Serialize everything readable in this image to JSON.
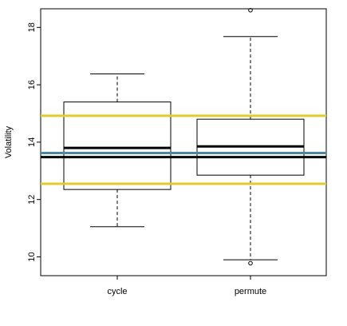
{
  "chart_data": {
    "type": "box",
    "title": "",
    "xlabel": "",
    "ylabel": "Volatility",
    "categories": [
      "cycle",
      "permute"
    ],
    "ylim": [
      9.4,
      19.0
    ],
    "yticks": [
      10,
      12,
      14,
      16,
      18
    ],
    "boxes": [
      {
        "category": "cycle",
        "whisker_low": 11.05,
        "q1": 12.35,
        "median": 13.8,
        "q3": 15.4,
        "whisker_high": 16.38,
        "outliers": []
      },
      {
        "category": "permute",
        "whisker_low": 9.9,
        "q1": 12.85,
        "median": 13.85,
        "q3": 14.8,
        "whisker_high": 17.68,
        "outliers": [
          9.78,
          18.6
        ]
      }
    ],
    "reference_lines": [
      {
        "value": 14.92,
        "color": "#e0cc2e"
      },
      {
        "value": 12.55,
        "color": "#e0cc2e"
      },
      {
        "value": 13.62,
        "color": "#4a87a6"
      },
      {
        "value": 13.48,
        "color": "#000000"
      }
    ],
    "legend": "none",
    "grid": false
  }
}
